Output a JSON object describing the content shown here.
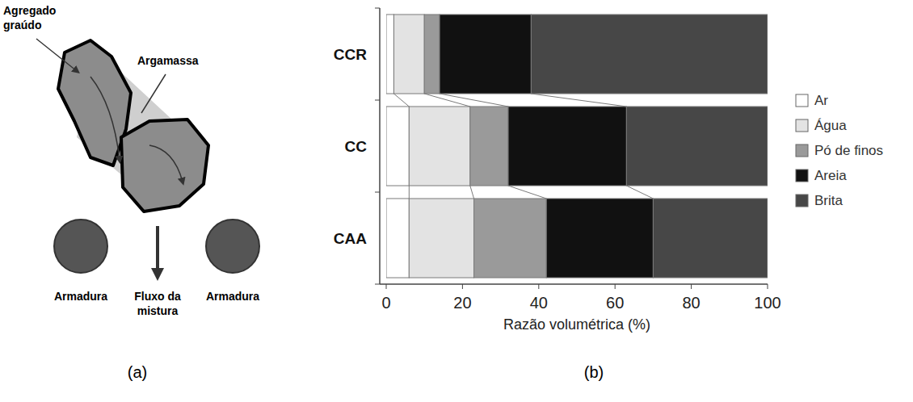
{
  "diagram": {
    "labels": {
      "coarse_aggregate": "Agregado graúdo",
      "mortar": "Argamassa",
      "rebar_left": "Armadura",
      "rebar_right": "Armadura",
      "flow": "Fluxo da mistura"
    }
  },
  "panel_labels": [
    "(a)",
    "(b)"
  ],
  "chart_data": {
    "type": "bar",
    "orientation": "horizontal",
    "stacked": true,
    "categories": [
      "CCR",
      "CC",
      "CAA"
    ],
    "series": [
      {
        "name": "Ar",
        "color": "#ffffff",
        "values": [
          2,
          6,
          6
        ]
      },
      {
        "name": "Água",
        "color": "#e3e3e3",
        "values": [
          8,
          16,
          17
        ]
      },
      {
        "name": "Pó de finos",
        "color": "#9a9a9a",
        "values": [
          4,
          10,
          19
        ]
      },
      {
        "name": "Areia",
        "color": "#111111",
        "values": [
          24,
          31,
          28
        ]
      },
      {
        "name": "Brita",
        "color": "#474747",
        "values": [
          62,
          37,
          30
        ]
      }
    ],
    "xlim": [
      0,
      100
    ],
    "xticks": [
      0,
      20,
      40,
      60,
      80,
      100
    ],
    "x_label": "Razão volumétrica (%)",
    "legend": "right",
    "grid": false
  }
}
